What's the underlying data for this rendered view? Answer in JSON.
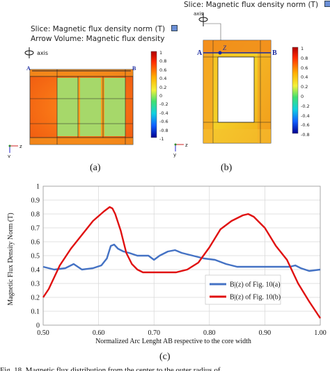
{
  "panel_a": {
    "title_line1": "Slice: Magnetic flux density norm (T)",
    "title_line2": "Arrow Volume: Magnetic flux density",
    "axis_label": "axis",
    "point_a": "A",
    "point_b": "B",
    "colorbar_ticks": [
      "1",
      "0.8",
      "0.6",
      "0.4",
      "0.2",
      "0",
      "-0.2",
      "-0.4",
      "-0.6",
      "-0.8",
      "-1"
    ],
    "axis_z": "z",
    "axis_y": "y",
    "caption": "(a)"
  },
  "panel_b": {
    "title_line1": "Slice: Magnetic flux density norm (T)",
    "axis_label": "axis",
    "point_a": "A",
    "point_b": "B",
    "z_marker": "Z",
    "colorbar_ticks": [
      "1",
      "0.8",
      "0.6",
      "0.4",
      "0.2",
      "0",
      "-0.2",
      "-0.4",
      "-0.6",
      "-0.8"
    ],
    "axis_z": "z",
    "axis_y": "y",
    "caption": "(b)"
  },
  "panel_c": {
    "caption": "(c)"
  },
  "figure_caption_fragment": "Fig. 18.   Magnetic flux distribution from the center to the outer radius of",
  "colors": {
    "series_a": "#4472c4",
    "series_b": "#e01010"
  },
  "chart_data": {
    "type": "line",
    "title": "",
    "xlabel": "Normalized Arc Lenght AB respective to the core width",
    "ylabel": "Magnetic Flux Density Norm (T)",
    "xlim": [
      0.5,
      1.0
    ],
    "ylim": [
      0,
      1
    ],
    "xticks": [
      "0.50",
      "0.60",
      "0.70",
      "0.80",
      "0.90",
      "1.00"
    ],
    "yticks": [
      "0",
      "0.1",
      "0.2",
      "0.3",
      "0.4",
      "0.5",
      "0.6",
      "0.7",
      "0.8",
      "0.9",
      "1"
    ],
    "grid": true,
    "legend": "bottom-right",
    "series": [
      {
        "name": "B|(z) of Fig. 10(a)",
        "x": [
          0.5,
          0.52,
          0.54,
          0.555,
          0.57,
          0.59,
          0.605,
          0.615,
          0.622,
          0.628,
          0.635,
          0.645,
          0.655,
          0.67,
          0.69,
          0.7,
          0.71,
          0.725,
          0.738,
          0.75,
          0.77,
          0.79,
          0.81,
          0.83,
          0.85,
          0.87,
          0.89,
          0.91,
          0.93,
          0.945,
          0.955,
          0.965,
          0.98,
          1.0
        ],
        "y": [
          0.42,
          0.4,
          0.41,
          0.44,
          0.4,
          0.41,
          0.43,
          0.48,
          0.57,
          0.58,
          0.55,
          0.53,
          0.52,
          0.5,
          0.5,
          0.47,
          0.5,
          0.53,
          0.54,
          0.52,
          0.5,
          0.48,
          0.47,
          0.44,
          0.42,
          0.42,
          0.42,
          0.42,
          0.42,
          0.42,
          0.43,
          0.41,
          0.39,
          0.4
        ]
      },
      {
        "name": "B|(z) of Fig. 10(b)",
        "x": [
          0.5,
          0.51,
          0.53,
          0.55,
          0.57,
          0.59,
          0.61,
          0.62,
          0.625,
          0.63,
          0.64,
          0.65,
          0.66,
          0.67,
          0.68,
          0.69,
          0.7,
          0.72,
          0.74,
          0.76,
          0.78,
          0.8,
          0.82,
          0.84,
          0.86,
          0.87,
          0.88,
          0.9,
          0.92,
          0.94,
          0.96,
          0.98,
          1.0
        ],
        "y": [
          0.2,
          0.26,
          0.43,
          0.55,
          0.65,
          0.75,
          0.82,
          0.85,
          0.84,
          0.8,
          0.68,
          0.52,
          0.44,
          0.4,
          0.38,
          0.38,
          0.38,
          0.38,
          0.38,
          0.4,
          0.45,
          0.56,
          0.69,
          0.75,
          0.79,
          0.8,
          0.78,
          0.7,
          0.57,
          0.47,
          0.3,
          0.17,
          0.05
        ]
      }
    ]
  }
}
